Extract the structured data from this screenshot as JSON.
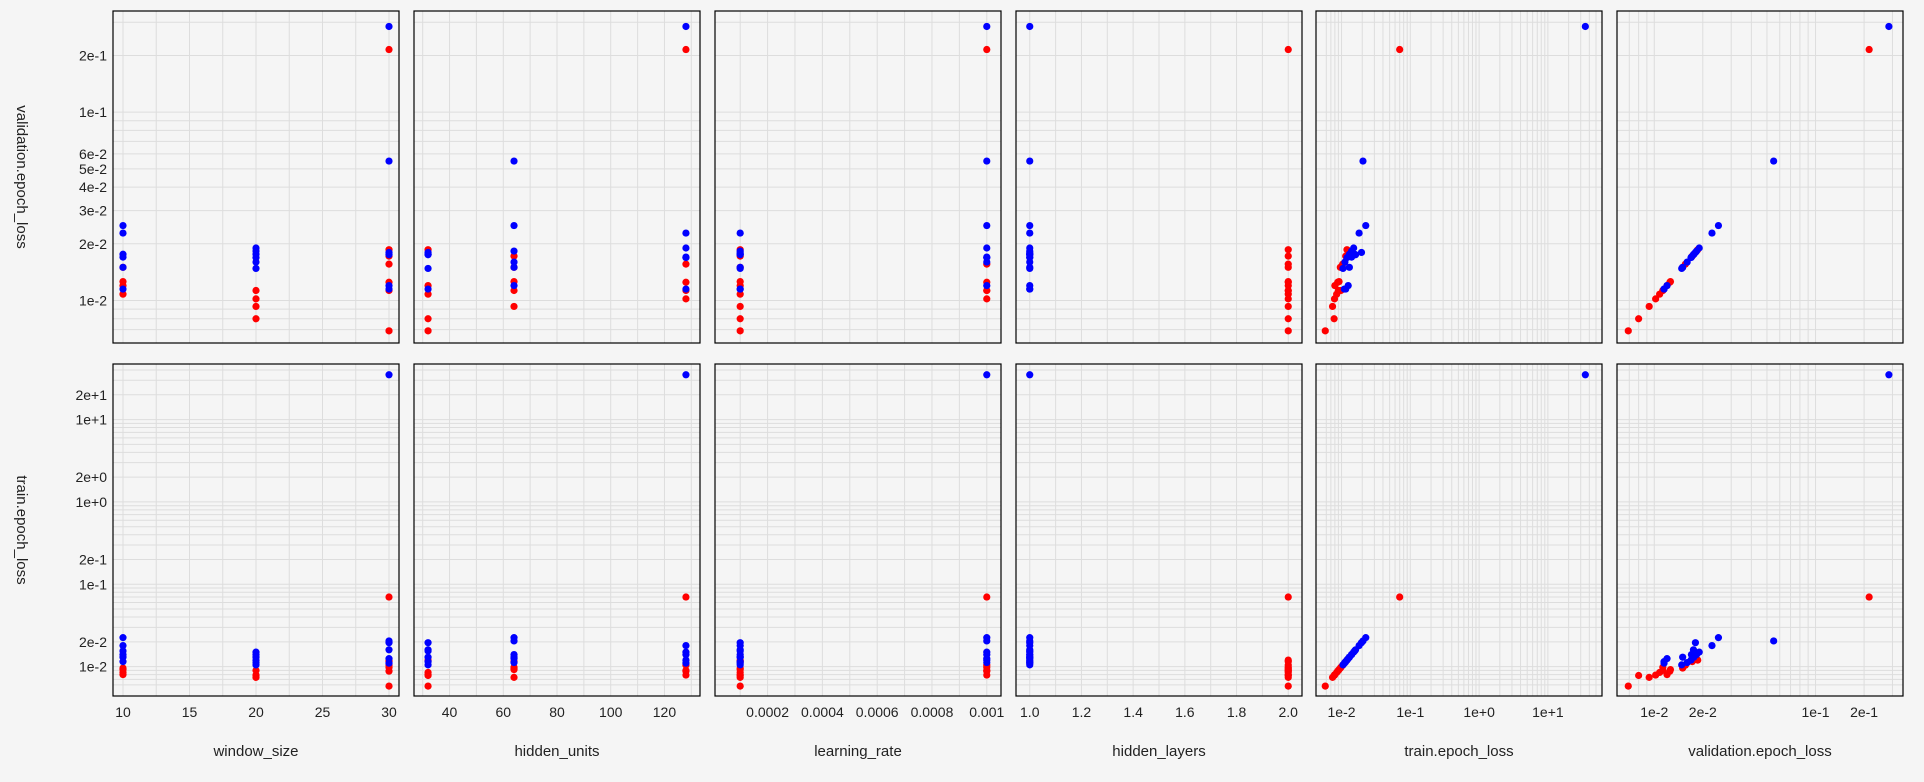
{
  "colors": {
    "red": "#ff0000",
    "blue": "#0000ff",
    "grid": "#dddddd",
    "frame": "#000000"
  },
  "chart_data": {
    "type": "scatter",
    "subtype": "pairplot",
    "columns": [
      "window_size",
      "hidden_units",
      "learning_rate",
      "hidden_layers",
      "train.epoch_loss",
      "validation.epoch_loss"
    ],
    "rows": [
      "validation.epoch_loss",
      "train.epoch_loss"
    ],
    "grid": true,
    "log_scale": {
      "window_size": false,
      "hidden_units": false,
      "learning_rate": false,
      "hidden_layers": false,
      "train.epoch_loss": true,
      "validation.epoch_loss": true
    },
    "axis_ranges": {
      "window_size": [
        9.7,
        30.3
      ],
      "hidden_units": [
        29,
        131
      ],
      "learning_rate": [
        3e-05,
        0.00103
      ],
      "hidden_layers": [
        0.97,
        2.03
      ],
      "train.epoch_loss": [
        0.0052,
        50
      ],
      "validation.epoch_loss": [
        0.0064,
        0.32
      ],
      "row_validation.epoch_loss": [
        0.0064,
        0.32
      ],
      "row_train.epoch_loss": [
        0.0052,
        40
      ]
    },
    "x_ticks": [
      {
        "values": [
          10,
          15,
          20,
          25,
          30
        ],
        "labels": [
          "10",
          "15",
          "20",
          "25",
          "30"
        ]
      },
      {
        "values": [
          40,
          60,
          80,
          100,
          120
        ],
        "labels": [
          "40",
          "60",
          "80",
          "100",
          "120"
        ]
      },
      {
        "values": [
          0.0002,
          0.0004,
          0.0006,
          0.0008,
          0.001
        ],
        "labels": [
          "0.0002",
          "0.0004",
          "0.0006",
          "0.0008",
          "0.001"
        ]
      },
      {
        "values": [
          1.0,
          1.2,
          1.4,
          1.6,
          1.8,
          2.0
        ],
        "labels": [
          "1.0",
          "1.2",
          "1.4",
          "1.6",
          "1.8",
          "2.0"
        ]
      },
      {
        "values": [
          0.01,
          0.1,
          1,
          10
        ],
        "labels": [
          "1e-2",
          "1e-1",
          "1e+0",
          "1e+1"
        ]
      },
      {
        "values": [
          0.01,
          0.02,
          0.1,
          0.2
        ],
        "labels": [
          "1e-2",
          "2e-2",
          "1e-1",
          "2e-1"
        ]
      }
    ],
    "y_ticks": [
      {
        "values": [
          0.01,
          0.02,
          0.03,
          0.04,
          0.05,
          0.06,
          0.1,
          0.2
        ],
        "labels": [
          "1e-2",
          "2e-2",
          "3e-2",
          "4e-2",
          "5e-2",
          "6e-2",
          "1e-1",
          "2e-1"
        ]
      },
      {
        "values": [
          0.01,
          0.02,
          0.1,
          0.2,
          1,
          2,
          10,
          20
        ],
        "labels": [
          "1e-2",
          "2e-2",
          "1e-1",
          "2e-1",
          "1e+0",
          "2e+0",
          "1e+1",
          "2e+1"
        ]
      }
    ],
    "series": [
      {
        "color": "red",
        "window_size": [
          10,
          10,
          10,
          10,
          20,
          20,
          20,
          20,
          30,
          30,
          30,
          30,
          30,
          30,
          30
        ],
        "hidden_units": [
          32,
          32,
          64,
          64,
          32,
          64,
          128,
          128,
          128,
          32,
          64,
          128,
          64,
          32,
          128
        ],
        "learning_rate": [
          0.0001,
          0.0001,
          0.0001,
          0.0001,
          0.0001,
          0.0001,
          0.001,
          0.001,
          0.001,
          0.0001,
          0.001,
          0.001,
          0.0001,
          0.0001,
          0.001
        ],
        "hidden_layers": [
          2,
          2,
          2,
          2,
          2,
          2,
          2,
          2,
          2,
          2,
          2,
          2,
          2,
          2,
          2
        ],
        "train.epoch_loss": [
          0.0085,
          0.008,
          0.0092,
          0.0096,
          0.0078,
          0.0074,
          0.0079,
          0.009,
          0.07,
          0.0058,
          0.0098,
          0.0104,
          0.0115,
          0.012,
          0.0088
        ],
        "validation.epoch_loss": [
          0.0108,
          0.012,
          0.0126,
          0.015,
          0.008,
          0.0093,
          0.0102,
          0.0113,
          0.215,
          0.0069,
          0.0113,
          0.0156,
          0.0172,
          0.0186,
          0.0125
        ]
      },
      {
        "color": "blue",
        "window_size": [
          10,
          10,
          10,
          10,
          10,
          10,
          20,
          20,
          20,
          20,
          20,
          20,
          30,
          30,
          30,
          30,
          30,
          30
        ],
        "hidden_units": [
          32,
          64,
          128,
          32,
          64,
          128,
          32,
          64,
          128,
          32,
          64,
          128,
          128,
          64,
          32,
          128,
          64,
          32
        ],
        "learning_rate": [
          0.0001,
          0.0001,
          0.001,
          0.0001,
          0.001,
          0.0001,
          0.0001,
          0.001,
          0.001,
          0.0001,
          0.0001,
          0.001,
          0.001,
          0.001,
          0.0001,
          0.0001,
          0.001,
          0.0001
        ],
        "hidden_layers": [
          1,
          1,
          1,
          1,
          1,
          1,
          1,
          1,
          1,
          1,
          1,
          1,
          1,
          1,
          1,
          1,
          1,
          1
        ],
        "train.epoch_loss": [
          0.0115,
          0.013,
          0.014,
          0.0155,
          0.0225,
          0.018,
          0.0105,
          0.0112,
          0.012,
          0.013,
          0.014,
          0.015,
          35,
          0.0205,
          0.0195,
          0.011,
          0.0125,
          0.016
        ],
        "validation.epoch_loss": [
          0.0115,
          0.015,
          0.017,
          0.0176,
          0.025,
          0.0228,
          0.0148,
          0.016,
          0.0169,
          0.0176,
          0.0183,
          0.019,
          0.285,
          0.055,
          0.018,
          0.0115,
          0.012,
          0.0175
        ]
      }
    ],
    "xlabels": [
      "window_size",
      "hidden_units",
      "learning_rate",
      "hidden_layers",
      "train.epoch_loss",
      "validation.epoch_loss"
    ],
    "ylabels": [
      "validation.epoch_loss",
      "train.epoch_loss"
    ]
  }
}
